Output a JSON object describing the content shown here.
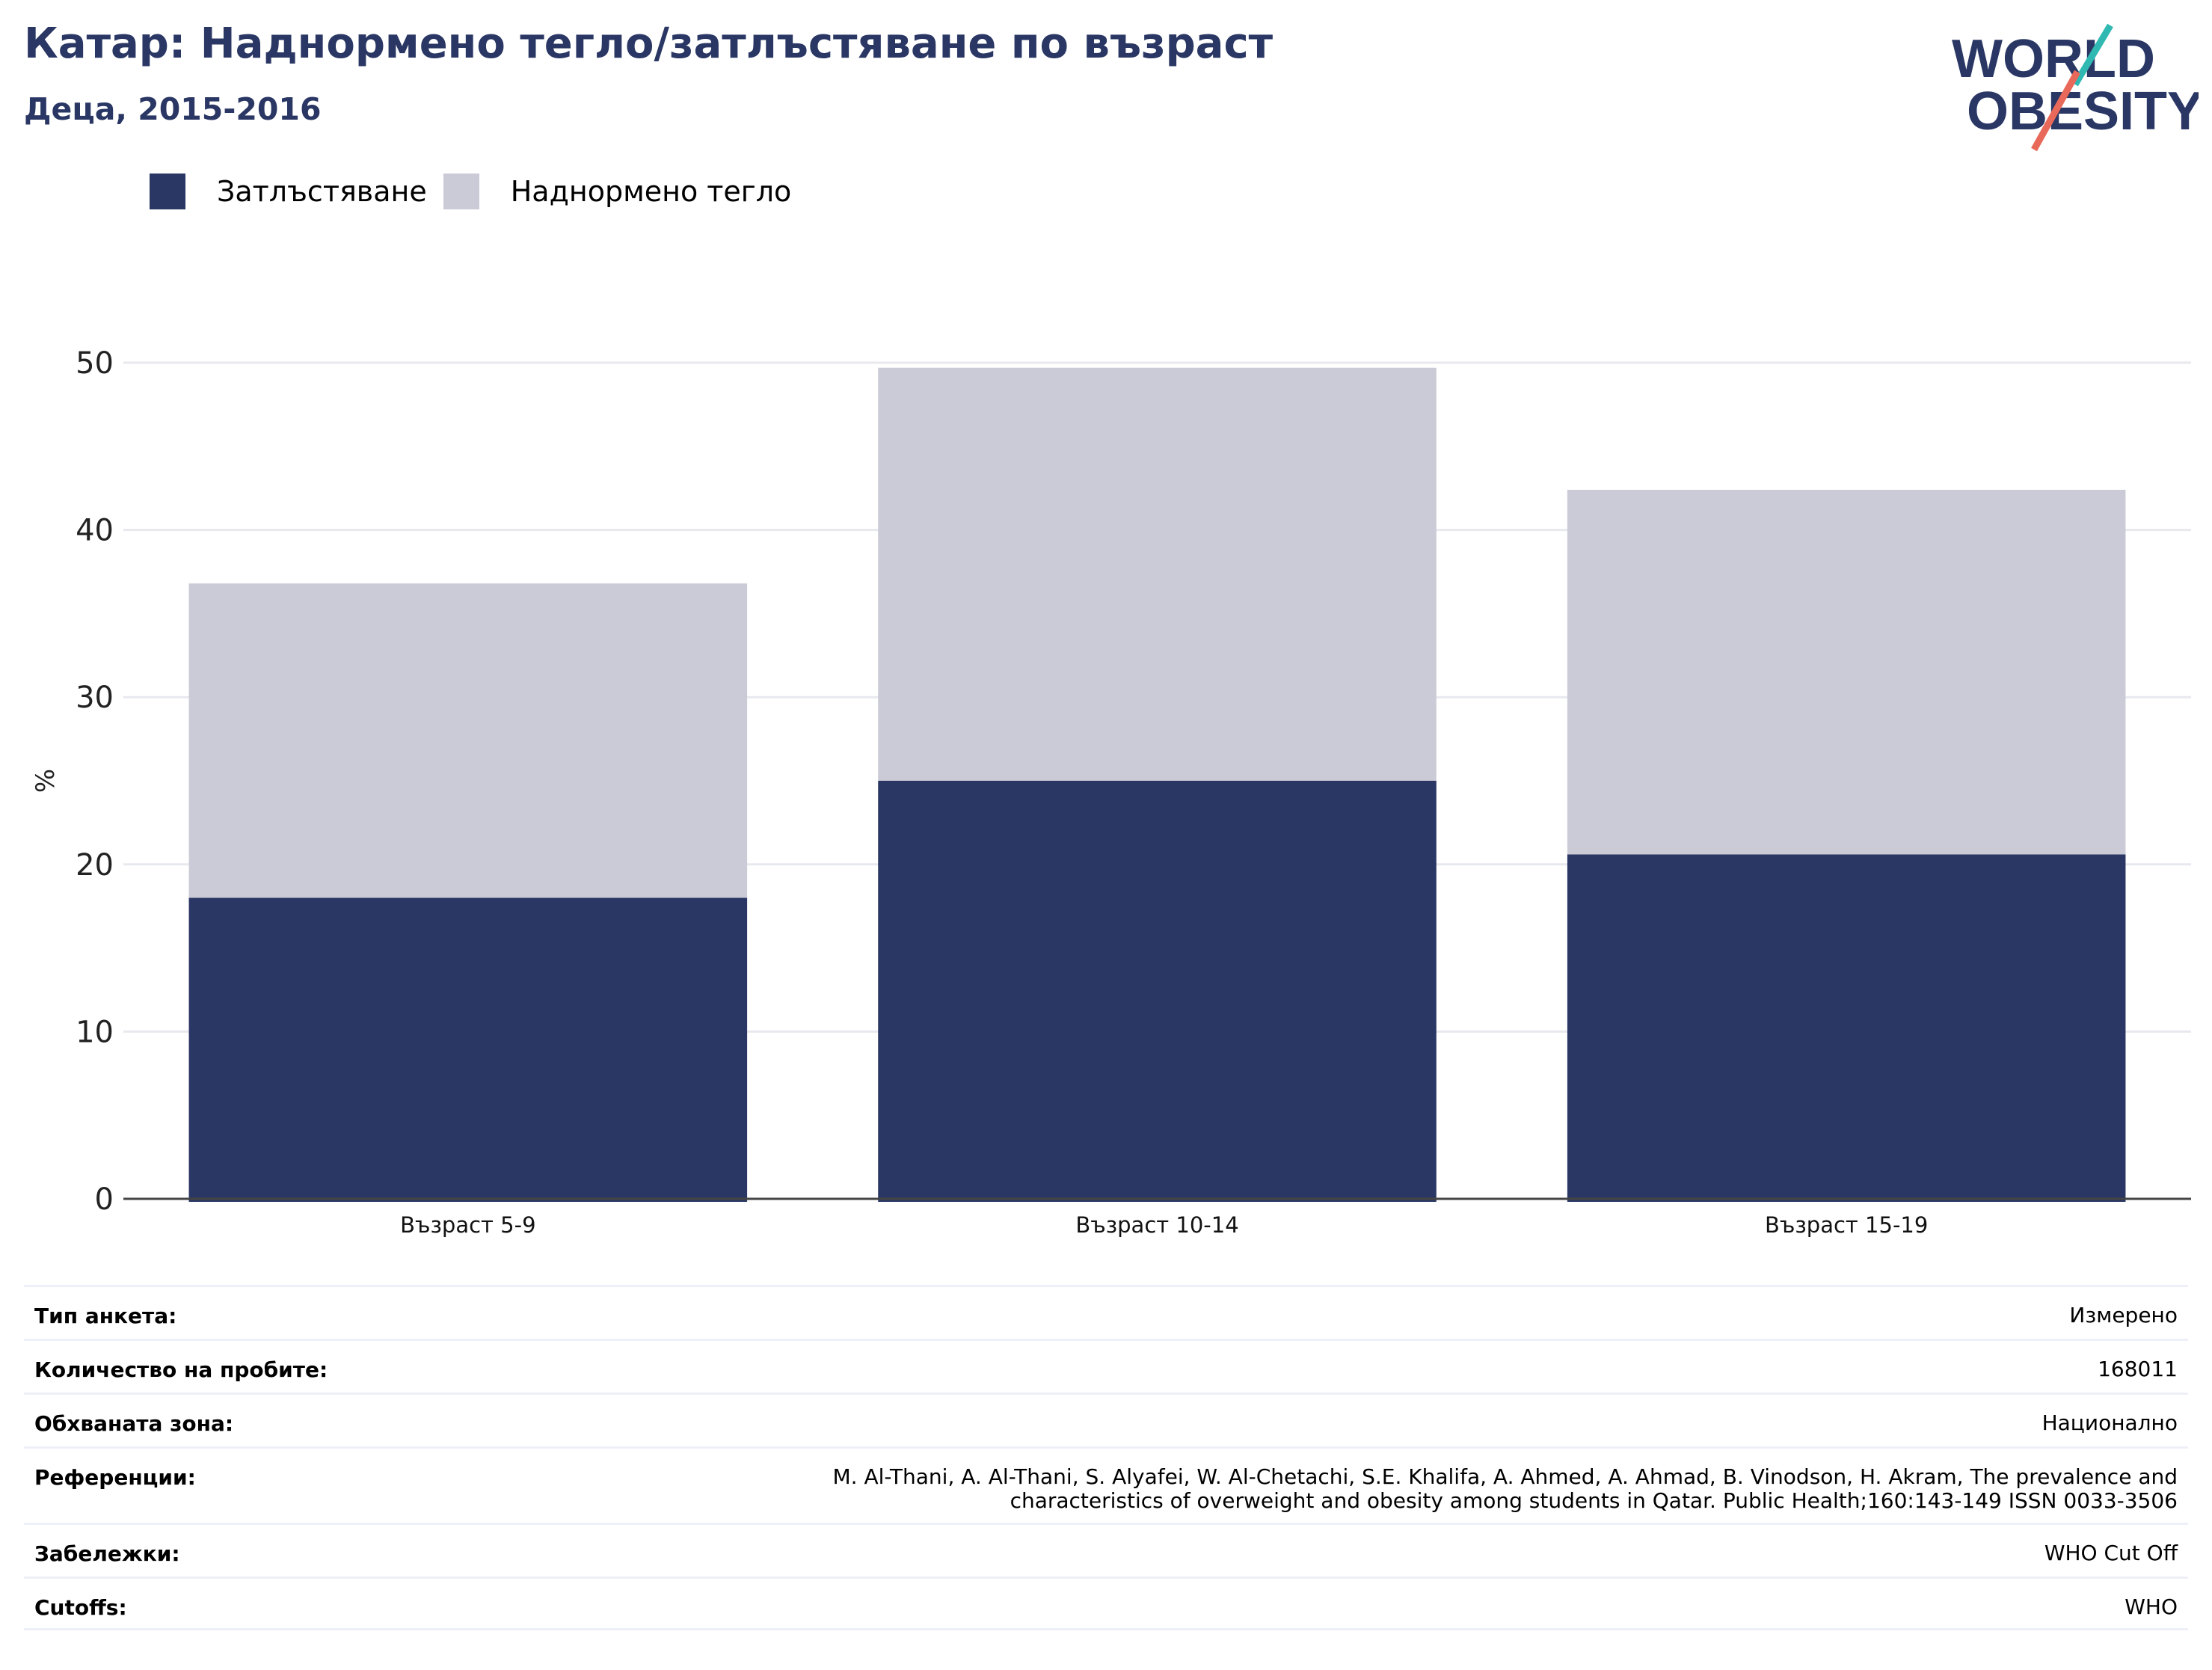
{
  "header": {
    "title": "Катар: Наднормено тегло/затлъстяване по възраст",
    "subtitle": "Деца, 2015-2016"
  },
  "logo": {
    "line1": "WORLD",
    "line2": "OBESITY",
    "colors": {
      "text": "#2a3764",
      "teal": "#2fb9b2",
      "coral": "#e8695a"
    }
  },
  "legend": [
    {
      "label": "Затлъстяване",
      "color": "#2a3764"
    },
    {
      "label": "Наднормено тегло",
      "color": "#cacbd7"
    }
  ],
  "chart_data": {
    "type": "bar",
    "stacked": true,
    "categories": [
      "Възраст 5-9",
      "Възраст 10-14",
      "Възраст 15-19"
    ],
    "series": [
      {
        "name": "Затлъстяване",
        "color": "#2a3764",
        "values": [
          18.0,
          25.0,
          20.6
        ]
      },
      {
        "name": "Наднормено тегло",
        "color": "#cacbd7",
        "values": [
          18.8,
          24.7,
          21.8
        ]
      }
    ],
    "ylabel": "%",
    "ylim": [
      0,
      50
    ],
    "yticks": [
      0,
      10,
      20,
      30,
      40,
      50
    ],
    "grid": true,
    "legend_position": "top-left"
  },
  "meta": [
    {
      "label": "Тип анкета:",
      "value": "Измерено"
    },
    {
      "label": "Количество на пробите:",
      "value": "168011"
    },
    {
      "label": "Обхваната зона:",
      "value": "Национално"
    },
    {
      "label": "Референции:",
      "value": "M. Al-Thani, A. Al-Thani, S. Alyafei, W. Al-Chetachi, S.E. Khalifa, A. Ahmed, A. Ahmad, B. Vinodson, H. Akram, The prevalence and\ncharacteristics of overweight and obesity among students in Qatar. Public Health;160:143-149 ISSN 0033-3506"
    },
    {
      "label": "Забележки:",
      "value": "WHO Cut Off"
    },
    {
      "label": "Cutoffs:",
      "value": "WHO"
    }
  ]
}
